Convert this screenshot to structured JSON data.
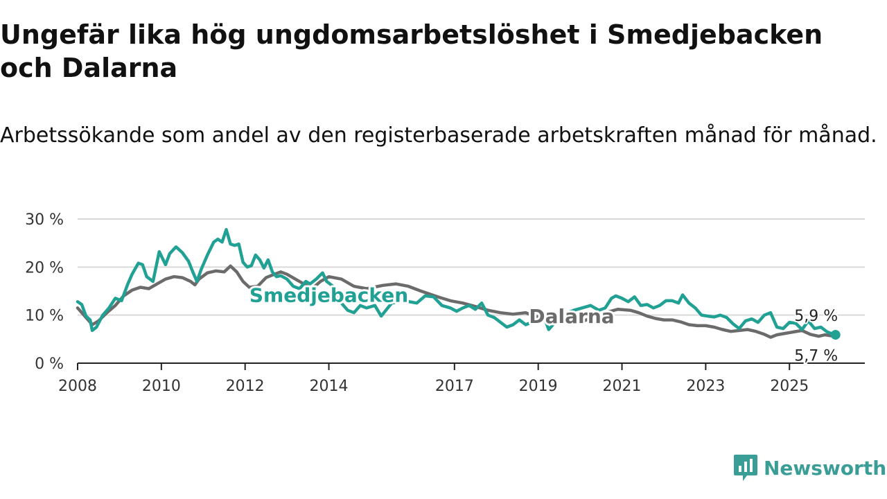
{
  "chart_data": {
    "type": "line",
    "title": "Ungefär lika hög ungdomsarbetslöshet i Smedjebacken och Dalarna",
    "subtitle": "Arbetssökande som andel av den registerbaserade arbetskraften månad för månad.",
    "xlabel": "",
    "ylabel": "",
    "ylim": [
      0,
      30
    ],
    "xlim": [
      2008,
      2026.8
    ],
    "yticks": [
      0,
      10,
      20,
      30
    ],
    "ytick_labels": [
      "0 %",
      "10 %",
      "20 %",
      "30 %"
    ],
    "xticks": [
      2008,
      2010,
      2012,
      2014,
      2017,
      2019,
      2021,
      2023,
      2025
    ],
    "xtick_labels": [
      "2008",
      "2010",
      "2012",
      "2014",
      "2017",
      "2019",
      "2021",
      "2023",
      "2025"
    ],
    "grid": true,
    "series": [
      {
        "name": "Dalarna",
        "color": "#6b6b6b",
        "end_label": "5,7 %",
        "points": [
          [
            2008.0,
            11.5
          ],
          [
            2008.2,
            9.5
          ],
          [
            2008.35,
            8.0
          ],
          [
            2008.5,
            8.8
          ],
          [
            2008.7,
            10.5
          ],
          [
            2008.9,
            12.0
          ],
          [
            2009.1,
            14.0
          ],
          [
            2009.3,
            15.2
          ],
          [
            2009.5,
            15.8
          ],
          [
            2009.7,
            15.5
          ],
          [
            2009.9,
            16.5
          ],
          [
            2010.1,
            17.5
          ],
          [
            2010.3,
            18.0
          ],
          [
            2010.5,
            17.8
          ],
          [
            2010.7,
            17.0
          ],
          [
            2010.8,
            16.3
          ],
          [
            2010.9,
            17.5
          ],
          [
            2011.1,
            18.8
          ],
          [
            2011.3,
            19.2
          ],
          [
            2011.5,
            19.0
          ],
          [
            2011.65,
            20.2
          ],
          [
            2011.8,
            19.0
          ],
          [
            2011.95,
            17.0
          ],
          [
            2012.1,
            15.8
          ],
          [
            2012.3,
            16.0
          ],
          [
            2012.5,
            17.8
          ],
          [
            2012.7,
            18.5
          ],
          [
            2012.85,
            19.0
          ],
          [
            2013.0,
            18.5
          ],
          [
            2013.2,
            17.5
          ],
          [
            2013.4,
            16.5
          ],
          [
            2013.6,
            15.5
          ],
          [
            2013.8,
            17.0
          ],
          [
            2014.0,
            18.0
          ],
          [
            2014.3,
            17.5
          ],
          [
            2014.6,
            16.0
          ],
          [
            2014.9,
            15.5
          ],
          [
            2015.3,
            16.2
          ],
          [
            2015.6,
            16.5
          ],
          [
            2015.9,
            16.0
          ],
          [
            2016.2,
            15.0
          ],
          [
            2016.6,
            13.8
          ],
          [
            2016.9,
            13.0
          ],
          [
            2017.2,
            12.5
          ],
          [
            2017.5,
            11.8
          ],
          [
            2017.8,
            11.0
          ],
          [
            2018.1,
            10.5
          ],
          [
            2018.4,
            10.2
          ],
          [
            2018.7,
            10.5
          ],
          [
            2018.9,
            9.8
          ],
          [
            2019.1,
            9.5
          ],
          [
            2019.4,
            9.0
          ],
          [
            2019.7,
            8.5
          ],
          [
            2020.0,
            8.5
          ],
          [
            2020.3,
            9.5
          ],
          [
            2020.6,
            10.5
          ],
          [
            2020.9,
            11.2
          ],
          [
            2021.2,
            11.0
          ],
          [
            2021.4,
            10.5
          ],
          [
            2021.6,
            9.8
          ],
          [
            2021.8,
            9.3
          ],
          [
            2022.0,
            9.0
          ],
          [
            2022.2,
            9.0
          ],
          [
            2022.4,
            8.6
          ],
          [
            2022.6,
            8.0
          ],
          [
            2022.8,
            7.8
          ],
          [
            2023.0,
            7.8
          ],
          [
            2023.2,
            7.5
          ],
          [
            2023.4,
            7.0
          ],
          [
            2023.6,
            6.6
          ],
          [
            2023.8,
            6.8
          ],
          [
            2024.0,
            7.0
          ],
          [
            2024.2,
            6.6
          ],
          [
            2024.4,
            6.0
          ],
          [
            2024.55,
            5.4
          ],
          [
            2024.7,
            5.9
          ],
          [
            2024.9,
            6.2
          ],
          [
            2025.1,
            6.5
          ],
          [
            2025.3,
            6.8
          ],
          [
            2025.5,
            6.0
          ],
          [
            2025.7,
            5.6
          ],
          [
            2025.85,
            5.9
          ],
          [
            2026.0,
            5.7
          ],
          [
            2026.1,
            5.7
          ]
        ]
      },
      {
        "name": "Smedjebacken",
        "color": "#21a094",
        "end_label": "5,9 %",
        "points": [
          [
            2008.0,
            12.8
          ],
          [
            2008.1,
            12.2
          ],
          [
            2008.2,
            9.8
          ],
          [
            2008.3,
            9.0
          ],
          [
            2008.35,
            6.8
          ],
          [
            2008.45,
            7.5
          ],
          [
            2008.6,
            10.0
          ],
          [
            2008.75,
            11.5
          ],
          [
            2008.9,
            13.5
          ],
          [
            2009.05,
            13.0
          ],
          [
            2009.2,
            16.5
          ],
          [
            2009.3,
            18.5
          ],
          [
            2009.45,
            20.8
          ],
          [
            2009.55,
            20.5
          ],
          [
            2009.65,
            18.0
          ],
          [
            2009.8,
            17.0
          ],
          [
            2009.95,
            23.2
          ],
          [
            2010.1,
            20.5
          ],
          [
            2010.2,
            22.8
          ],
          [
            2010.35,
            24.2
          ],
          [
            2010.5,
            23.0
          ],
          [
            2010.65,
            21.2
          ],
          [
            2010.75,
            19.0
          ],
          [
            2010.85,
            17.0
          ],
          [
            2010.95,
            19.5
          ],
          [
            2011.1,
            22.5
          ],
          [
            2011.25,
            25.2
          ],
          [
            2011.35,
            25.8
          ],
          [
            2011.45,
            25.2
          ],
          [
            2011.55,
            27.8
          ],
          [
            2011.65,
            24.8
          ],
          [
            2011.75,
            24.5
          ],
          [
            2011.85,
            24.8
          ],
          [
            2011.95,
            21.0
          ],
          [
            2012.05,
            20.0
          ],
          [
            2012.15,
            20.3
          ],
          [
            2012.25,
            22.5
          ],
          [
            2012.35,
            21.5
          ],
          [
            2012.45,
            19.8
          ],
          [
            2012.55,
            21.5
          ],
          [
            2012.65,
            19.0
          ],
          [
            2012.75,
            18.0
          ],
          [
            2012.85,
            18.2
          ],
          [
            2013.0,
            17.5
          ],
          [
            2013.15,
            16.0
          ],
          [
            2013.3,
            15.5
          ],
          [
            2013.45,
            17.0
          ],
          [
            2013.55,
            16.5
          ],
          [
            2013.7,
            17.5
          ],
          [
            2013.85,
            18.8
          ],
          [
            2013.95,
            17.0
          ],
          [
            2014.1,
            16.0
          ],
          [
            2014.3,
            12.5
          ],
          [
            2014.45,
            11.0
          ],
          [
            2014.6,
            10.5
          ],
          [
            2014.75,
            12.0
          ],
          [
            2014.9,
            11.5
          ],
          [
            2015.1,
            12.0
          ],
          [
            2015.25,
            9.8
          ],
          [
            2015.5,
            12.5
          ],
          [
            2015.8,
            13.0
          ],
          [
            2016.1,
            12.5
          ],
          [
            2016.3,
            14.0
          ],
          [
            2016.5,
            13.8
          ],
          [
            2016.7,
            12.0
          ],
          [
            2016.9,
            11.5
          ],
          [
            2017.05,
            10.8
          ],
          [
            2017.2,
            11.5
          ],
          [
            2017.35,
            12.0
          ],
          [
            2017.5,
            11.2
          ],
          [
            2017.65,
            12.5
          ],
          [
            2017.8,
            10.0
          ],
          [
            2017.95,
            9.5
          ],
          [
            2018.1,
            8.5
          ],
          [
            2018.25,
            7.5
          ],
          [
            2018.4,
            8.0
          ],
          [
            2018.55,
            9.0
          ],
          [
            2018.7,
            8.0
          ],
          [
            2018.85,
            8.5
          ],
          [
            2019.0,
            9.0
          ],
          [
            2019.1,
            10.5
          ],
          [
            2019.25,
            7.0
          ],
          [
            2019.4,
            8.5
          ],
          [
            2019.55,
            9.0
          ],
          [
            2019.7,
            10.5
          ],
          [
            2019.85,
            11.0
          ],
          [
            2020.05,
            11.5
          ],
          [
            2020.25,
            12.0
          ],
          [
            2020.45,
            11.0
          ],
          [
            2020.6,
            11.5
          ],
          [
            2020.75,
            13.5
          ],
          [
            2020.85,
            14.0
          ],
          [
            2021.0,
            13.5
          ],
          [
            2021.15,
            12.8
          ],
          [
            2021.3,
            13.8
          ],
          [
            2021.45,
            12.0
          ],
          [
            2021.6,
            12.2
          ],
          [
            2021.75,
            11.5
          ],
          [
            2021.9,
            12.0
          ],
          [
            2022.05,
            13.0
          ],
          [
            2022.2,
            13.0
          ],
          [
            2022.35,
            12.5
          ],
          [
            2022.45,
            14.2
          ],
          [
            2022.6,
            12.5
          ],
          [
            2022.75,
            11.5
          ],
          [
            2022.9,
            10.0
          ],
          [
            2023.05,
            9.8
          ],
          [
            2023.2,
            9.6
          ],
          [
            2023.35,
            10.0
          ],
          [
            2023.5,
            9.5
          ],
          [
            2023.65,
            8.2
          ],
          [
            2023.8,
            7.2
          ],
          [
            2023.95,
            8.8
          ],
          [
            2024.1,
            9.2
          ],
          [
            2024.25,
            8.5
          ],
          [
            2024.4,
            10.0
          ],
          [
            2024.55,
            10.5
          ],
          [
            2024.7,
            7.5
          ],
          [
            2024.85,
            7.2
          ],
          [
            2025.0,
            8.5
          ],
          [
            2025.15,
            8.3
          ],
          [
            2025.3,
            7.0
          ],
          [
            2025.45,
            8.8
          ],
          [
            2025.6,
            7.2
          ],
          [
            2025.75,
            7.5
          ],
          [
            2025.9,
            6.5
          ],
          [
            2026.05,
            6.0
          ],
          [
            2026.1,
            5.9
          ]
        ]
      }
    ]
  },
  "brand": {
    "name": "Newsworthy"
  }
}
